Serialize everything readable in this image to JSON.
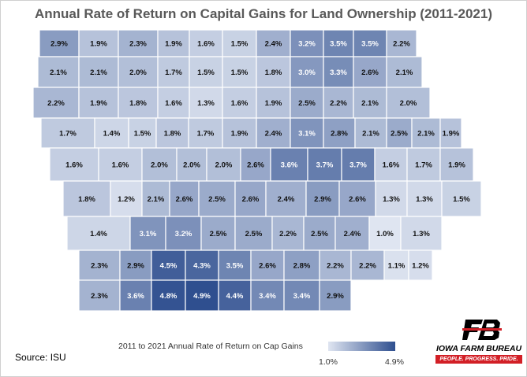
{
  "title": "Annual Rate of Return on Capital Gains for Land Ownership (2011-2021)",
  "source": "Source: ISU",
  "legend": {
    "title": "2011 to 2021 Annual Rate of Return on Cap Gains",
    "min_label": "1.0%",
    "max_label": "4.9%",
    "min_color": "#dfe5f1",
    "max_color": "#2f4f8f"
  },
  "logo": {
    "name": "IOWA FARM BUREAU",
    "tagline": "PEOPLE. PROGRESS. PRIDE.",
    "brand_color": "#d21f26"
  },
  "map_data": {
    "min_value": 1.0,
    "max_value": 4.9,
    "unit": "%",
    "counties": [
      {
        "value": 2.9,
        "label": "2.9%"
      },
      {
        "value": 1.9,
        "label": "1.9%"
      },
      {
        "value": 2.3,
        "label": "2.3%"
      },
      {
        "value": 1.9,
        "label": "1.9%"
      },
      {
        "value": 1.6,
        "label": "1.6%"
      },
      {
        "value": 1.5,
        "label": "1.5%"
      },
      {
        "value": 2.4,
        "label": "2.4%"
      },
      {
        "value": 3.2,
        "label": "3.2%"
      },
      {
        "value": 3.5,
        "label": "3.5%"
      },
      {
        "value": 3.5,
        "label": "3.5%"
      },
      {
        "value": 2.2,
        "label": "2.2%"
      },
      {
        "value": 2.1,
        "label": "2.1%"
      },
      {
        "value": 2.1,
        "label": "2.1%"
      },
      {
        "value": 2.0,
        "label": "2.0%"
      },
      {
        "value": 1.7,
        "label": "1.7%"
      },
      {
        "value": 1.5,
        "label": "1.5%"
      },
      {
        "value": 1.5,
        "label": "1.5%"
      },
      {
        "value": 1.8,
        "label": "1.8%"
      },
      {
        "value": 3.0,
        "label": "3.0%"
      },
      {
        "value": 3.3,
        "label": "3.3%"
      },
      {
        "value": 2.6,
        "label": "2.6%"
      },
      {
        "value": 2.1,
        "label": "2.1%"
      },
      {
        "value": 2.2,
        "label": "2.2%"
      },
      {
        "value": 1.9,
        "label": "1.9%"
      },
      {
        "value": 1.8,
        "label": "1.8%"
      },
      {
        "value": 1.6,
        "label": "1.6%"
      },
      {
        "value": 1.3,
        "label": "1.3%"
      },
      {
        "value": 1.6,
        "label": "1.6%"
      },
      {
        "value": 1.9,
        "label": "1.9%"
      },
      {
        "value": 2.5,
        "label": "2.5%"
      },
      {
        "value": 2.2,
        "label": "2.2%"
      },
      {
        "value": 2.1,
        "label": "2.1%"
      },
      {
        "value": 2.0,
        "label": "2.0%"
      },
      {
        "value": 1.7,
        "label": "1.7%"
      },
      {
        "value": 1.4,
        "label": "1.4%"
      },
      {
        "value": 1.5,
        "label": "1.5%"
      },
      {
        "value": 1.8,
        "label": "1.8%"
      },
      {
        "value": 1.7,
        "label": "1.7%"
      },
      {
        "value": 1.9,
        "label": "1.9%"
      },
      {
        "value": 2.4,
        "label": "2.4%"
      },
      {
        "value": 3.1,
        "label": "3.1%"
      },
      {
        "value": 2.8,
        "label": "2.8%"
      },
      {
        "value": 2.1,
        "label": "2.1%"
      },
      {
        "value": 2.5,
        "label": "2.5%"
      },
      {
        "value": 2.1,
        "label": "2.1%"
      },
      {
        "value": 1.9,
        "label": "1.9%"
      },
      {
        "value": 1.6,
        "label": "1.6%"
      },
      {
        "value": 1.6,
        "label": "1.6%"
      },
      {
        "value": 2.0,
        "label": "2.0%"
      },
      {
        "value": 2.0,
        "label": "2.0%"
      },
      {
        "value": 2.0,
        "label": "2.0%"
      },
      {
        "value": 2.6,
        "label": "2.6%"
      },
      {
        "value": 3.6,
        "label": "3.6%"
      },
      {
        "value": 3.7,
        "label": "3.7%"
      },
      {
        "value": 3.7,
        "label": "3.7%"
      },
      {
        "value": 1.6,
        "label": "1.6%"
      },
      {
        "value": 1.7,
        "label": "1.7%"
      },
      {
        "value": 1.9,
        "label": "1.9%"
      },
      {
        "value": 1.8,
        "label": "1.8%"
      },
      {
        "value": 1.2,
        "label": "1.2%"
      },
      {
        "value": 2.1,
        "label": "2.1%"
      },
      {
        "value": 2.6,
        "label": "2.6%"
      },
      {
        "value": 2.5,
        "label": "2.5%"
      },
      {
        "value": 2.6,
        "label": "2.6%"
      },
      {
        "value": 2.4,
        "label": "2.4%"
      },
      {
        "value": 2.9,
        "label": "2.9%"
      },
      {
        "value": 2.6,
        "label": "2.6%"
      },
      {
        "value": 1.3,
        "label": "1.3%"
      },
      {
        "value": 1.3,
        "label": "1.3%"
      },
      {
        "value": 1.5,
        "label": "1.5%"
      },
      {
        "value": 1.4,
        "label": "1.4%"
      },
      {
        "value": 3.1,
        "label": "3.1%"
      },
      {
        "value": 3.2,
        "label": "3.2%"
      },
      {
        "value": 2.5,
        "label": "2.5%"
      },
      {
        "value": 2.5,
        "label": "2.5%"
      },
      {
        "value": 2.2,
        "label": "2.2%"
      },
      {
        "value": 2.5,
        "label": "2.5%"
      },
      {
        "value": 2.4,
        "label": "2.4%"
      },
      {
        "value": 1.0,
        "label": "1.0%"
      },
      {
        "value": 1.3,
        "label": "1.3%"
      },
      {
        "value": 2.3,
        "label": "2.3%"
      },
      {
        "value": 2.9,
        "label": "2.9%"
      },
      {
        "value": 4.5,
        "label": "4.5%"
      },
      {
        "value": 4.3,
        "label": "4.3%"
      },
      {
        "value": 3.5,
        "label": "3.5%"
      },
      {
        "value": 2.6,
        "label": "2.6%"
      },
      {
        "value": 2.8,
        "label": "2.8%"
      },
      {
        "value": 2.2,
        "label": "2.2%"
      },
      {
        "value": 2.2,
        "label": "2.2%"
      },
      {
        "value": 1.1,
        "label": "1.1%"
      },
      {
        "value": 1.2,
        "label": "1.2%"
      },
      {
        "value": 2.3,
        "label": "2.3%"
      },
      {
        "value": 3.6,
        "label": "3.6%"
      },
      {
        "value": 4.8,
        "label": "4.8%"
      },
      {
        "value": 4.9,
        "label": "4.9%"
      },
      {
        "value": 4.4,
        "label": "4.4%"
      },
      {
        "value": 3.4,
        "label": "3.4%"
      },
      {
        "value": 3.4,
        "label": "3.4%"
      },
      {
        "value": 2.9,
        "label": "2.9%"
      }
    ]
  }
}
